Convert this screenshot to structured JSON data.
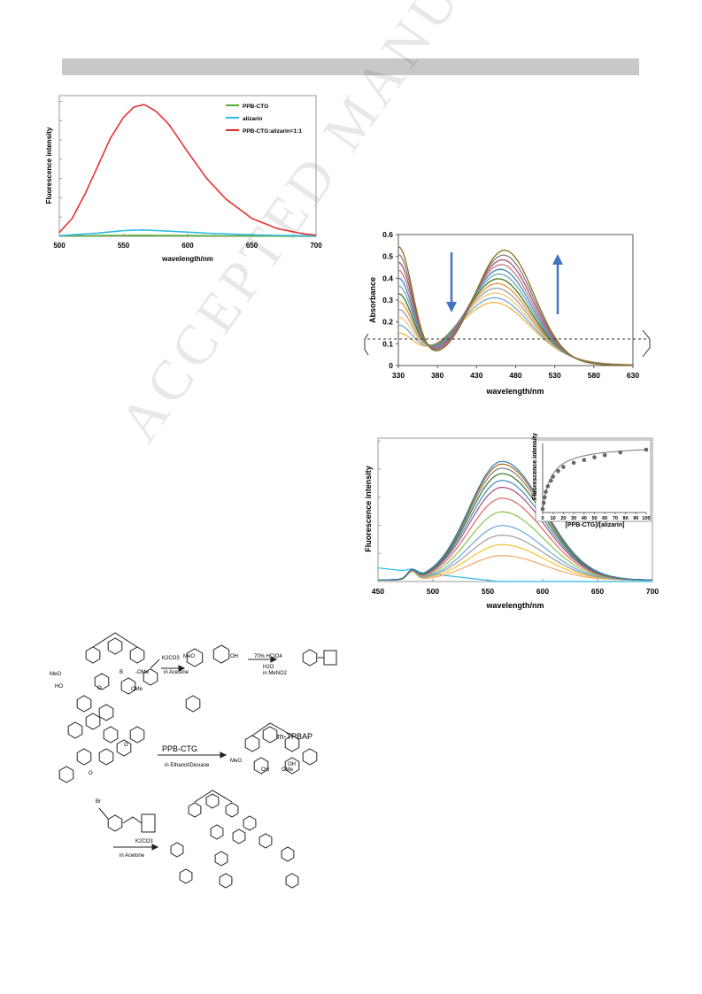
{
  "watermark": "ACCEPTED MANUSCRIPT",
  "chart_data": [
    {
      "type": "line",
      "xlabel": "wavelength/nm",
      "ylabel": "Fluorescence intensity",
      "xlim": [
        500,
        700
      ],
      "x_ticks": [
        "500",
        "550",
        "600",
        "650",
        "700"
      ],
      "legend_position": "top-right",
      "series": [
        {
          "name": "PPB-CTG",
          "color": "#5aa832",
          "x": [
            500,
            530,
            550,
            566,
            590,
            620,
            660,
            700
          ],
          "values": [
            0.3,
            0.5,
            0.7,
            0.8,
            0.6,
            0.4,
            0.2,
            0.1
          ]
        },
        {
          "name": "alizarin",
          "color": "#2fb9e8",
          "x": [
            500,
            530,
            550,
            566,
            590,
            620,
            660,
            700
          ],
          "values": [
            0.5,
            2.5,
            4.5,
            5.0,
            3.8,
            2.2,
            0.9,
            0.3
          ]
        },
        {
          "name": "PPB-CTG:alizarin=1:1",
          "color": "#e8312f",
          "x": [
            500,
            510,
            520,
            530,
            540,
            550,
            558,
            566,
            575,
            585,
            600,
            615,
            630,
            650,
            670,
            690,
            700
          ],
          "values": [
            3,
            14,
            33,
            55,
            77,
            93,
            101,
            103,
            98,
            88,
            66,
            45,
            29,
            14,
            6,
            2,
            1
          ]
        }
      ]
    },
    {
      "type": "line",
      "xlabel": "wavelength/nm",
      "ylabel": "Absorbance",
      "xlim": [
        330,
        630
      ],
      "ylim": [
        0,
        0.6
      ],
      "x_ticks": [
        "330",
        "380",
        "430",
        "480",
        "530",
        "580",
        "630"
      ],
      "y_ticks": [
        "0",
        "0.1",
        "0.2",
        "0.3",
        "0.4",
        "0.5",
        "0.6"
      ],
      "grid": false,
      "series_count": 12
    },
    {
      "type": "line",
      "xlabel": "wavelength/nm",
      "ylabel": "Fluorescence intensity",
      "xlim": [
        450,
        700
      ],
      "x_ticks": [
        "450",
        "500",
        "550",
        "600",
        "650",
        "700"
      ],
      "inset": {
        "type": "scatter",
        "xlabel": "[PPB-CTG]/[alizarin]",
        "ylabel": "Fluorescence intensity",
        "x_ticks": [
          "0",
          "10",
          "20",
          "30",
          "40",
          "50",
          "60",
          "70",
          "80",
          "90",
          "100"
        ],
        "x": [
          0,
          1,
          2,
          3,
          5,
          8,
          10,
          15,
          20,
          30,
          40,
          50,
          60,
          75,
          100
        ],
        "values": [
          0.05,
          0.14,
          0.22,
          0.3,
          0.38,
          0.46,
          0.52,
          0.6,
          0.66,
          0.72,
          0.76,
          0.8,
          0.83,
          0.87,
          0.91
        ]
      }
    }
  ],
  "scheme": {
    "labels": [
      "MeO",
      "HO",
      "B",
      "O",
      "O",
      "O",
      "OMe",
      "-OMe",
      "K2CO3",
      "in Acetone",
      "MeO",
      "OH",
      "70% HClO4",
      "H2O",
      "in MeNO2",
      "PPB-CTG",
      "in Ethanol/Dioxane",
      "m-TPBAP",
      "MeO",
      "OH",
      "OMe",
      "OH",
      "Br",
      "K2CO3",
      "in Acetone"
    ]
  }
}
